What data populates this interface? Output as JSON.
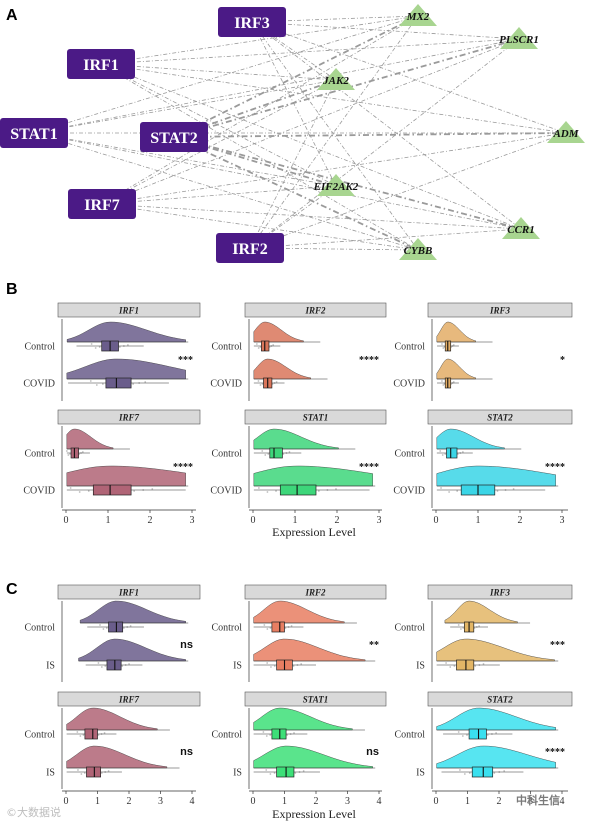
{
  "panel_a": {
    "label": "A",
    "tfs": [
      "IRF3",
      "IRF1",
      "STAT1",
      "STAT2",
      "IRF7",
      "IRF2"
    ],
    "genes": [
      "MX2",
      "PLSCR1",
      "JAK2",
      "ADM",
      "EIF2AK2",
      "CCR1",
      "CYBB"
    ],
    "colors": {
      "tf": "#4b1a86",
      "gene": "#a8d590",
      "edge": "#9a9a9a"
    }
  },
  "panel_b": {
    "label": "B",
    "x_axis_title": "Expression Level",
    "groups": [
      "Control",
      "COVID"
    ],
    "xticks": [
      "0",
      "1",
      "2",
      "3"
    ],
    "facets": [
      {
        "gene": "IRF1",
        "sig": "***",
        "color": "#6a5d8b"
      },
      {
        "gene": "IRF2",
        "sig": "****",
        "color": "#d9755a"
      },
      {
        "gene": "IRF3",
        "sig": "*",
        "color": "#e3ad66"
      },
      {
        "gene": "IRF7",
        "sig": "****",
        "color": "#b06476"
      },
      {
        "gene": "STAT1",
        "sig": "****",
        "color": "#3dd67a"
      },
      {
        "gene": "STAT2",
        "sig": "****",
        "color": "#3ad5e6"
      }
    ]
  },
  "panel_c": {
    "label": "C",
    "x_axis_title": "Expression Level",
    "groups": [
      "Control",
      "IS"
    ],
    "xticks": [
      "0",
      "1",
      "2",
      "3",
      "4"
    ],
    "facets": [
      {
        "gene": "IRF1",
        "sig": "ns",
        "color": "#6a5d8b"
      },
      {
        "gene": "IRF2",
        "sig": "**",
        "color": "#e77e62"
      },
      {
        "gene": "IRF3",
        "sig": "***",
        "color": "#e3b666"
      },
      {
        "gene": "IRF7",
        "sig": "ns",
        "color": "#b06476"
      },
      {
        "gene": "STAT1",
        "sig": "ns",
        "color": "#3ddf78"
      },
      {
        "gene": "STAT2",
        "sig": "****",
        "color": "#3ae0ef"
      }
    ]
  },
  "chart_data": [
    {
      "type": "raincloud",
      "panel": "B",
      "xlabel": "Expression Level",
      "xlim": [
        0,
        3
      ],
      "groups": [
        "Control",
        "COVID"
      ],
      "facets": [
        {
          "gene": "IRF1",
          "median": [
            1.05,
            1.2
          ],
          "q1": [
            0.85,
            0.95
          ],
          "q3": [
            1.25,
            1.55
          ],
          "sig": "***"
        },
        {
          "gene": "IRF2",
          "median": [
            0.28,
            0.35
          ],
          "q1": [
            0.2,
            0.25
          ],
          "q3": [
            0.38,
            0.45
          ],
          "sig": "****"
        },
        {
          "gene": "IRF3",
          "median": [
            0.28,
            0.28
          ],
          "q1": [
            0.22,
            0.22
          ],
          "q3": [
            0.35,
            0.35
          ],
          "sig": "*"
        },
        {
          "gene": "IRF7",
          "median": [
            0.2,
            1.05
          ],
          "q1": [
            0.12,
            0.65
          ],
          "q3": [
            0.3,
            1.55
          ],
          "sig": "****"
        },
        {
          "gene": "STAT1",
          "median": [
            0.5,
            1.05
          ],
          "q1": [
            0.4,
            0.65
          ],
          "q3": [
            0.7,
            1.5
          ],
          "sig": "****"
        },
        {
          "gene": "STAT2",
          "median": [
            0.35,
            1.0
          ],
          "q1": [
            0.25,
            0.6
          ],
          "q3": [
            0.5,
            1.4
          ],
          "sig": "****"
        }
      ]
    },
    {
      "type": "raincloud",
      "panel": "C",
      "xlabel": "Expression Level",
      "xlim": [
        0,
        4
      ],
      "groups": [
        "Control",
        "IS"
      ],
      "facets": [
        {
          "gene": "IRF1",
          "median": [
            1.6,
            1.55
          ],
          "q1": [
            1.35,
            1.3
          ],
          "q3": [
            1.8,
            1.75
          ],
          "sig": "ns"
        },
        {
          "gene": "IRF2",
          "median": [
            0.85,
            1.0
          ],
          "q1": [
            0.6,
            0.75
          ],
          "q3": [
            1.0,
            1.25
          ],
          "sig": "**"
        },
        {
          "gene": "IRF3",
          "median": [
            1.05,
            0.95
          ],
          "q1": [
            0.9,
            0.65
          ],
          "q3": [
            1.2,
            1.2
          ],
          "sig": "***"
        },
        {
          "gene": "IRF7",
          "median": [
            0.85,
            0.9
          ],
          "q1": [
            0.6,
            0.65
          ],
          "q3": [
            1.0,
            1.1
          ],
          "sig": "ns"
        },
        {
          "gene": "STAT1",
          "median": [
            0.85,
            1.05
          ],
          "q1": [
            0.6,
            0.75
          ],
          "q3": [
            1.05,
            1.3
          ],
          "sig": "ns"
        },
        {
          "gene": "STAT2",
          "median": [
            1.35,
            1.5
          ],
          "q1": [
            1.05,
            1.15
          ],
          "q3": [
            1.6,
            1.8
          ],
          "sig": "****"
        }
      ]
    }
  ],
  "watermarks": {
    "left": "©大数据说",
    "right": "中科生信"
  }
}
